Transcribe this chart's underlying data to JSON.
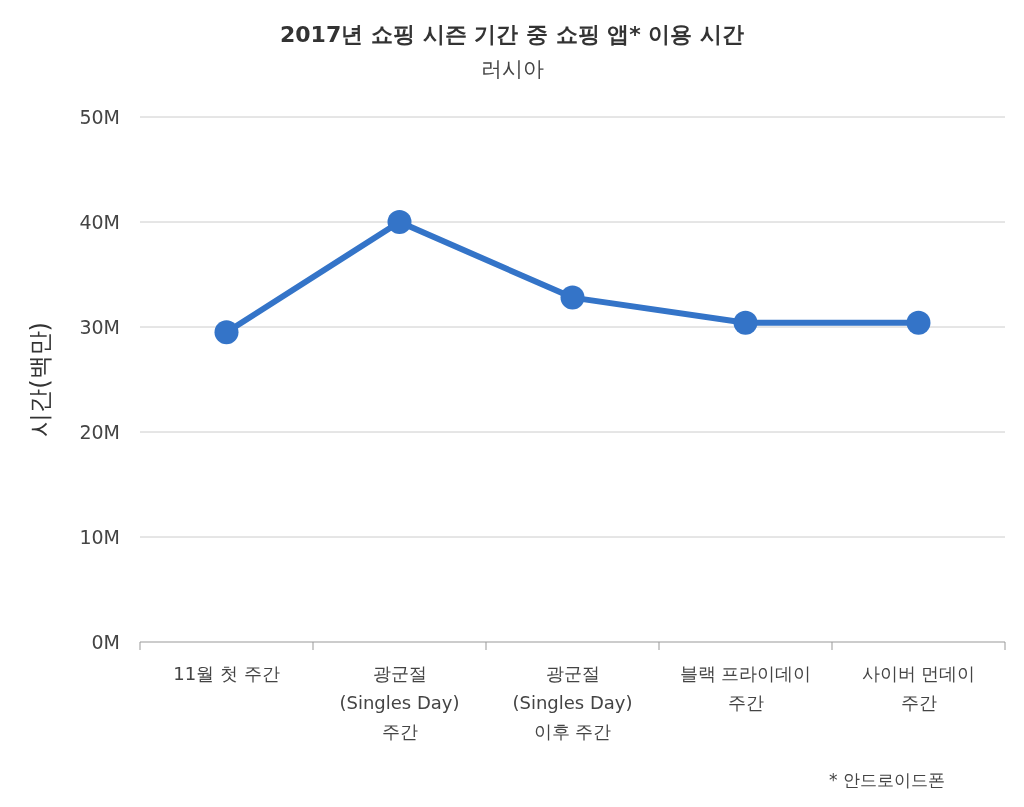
{
  "chart_data": {
    "type": "line",
    "title": "2017년 쇼핑 시즌 기간 중 쇼핑 앱* 이용 시간",
    "subtitle": "러시아",
    "ylabel": "시간(백만)",
    "categories": [
      "11월 첫 주간",
      "광군절 (Singles Day) 주간",
      "광군절 (Singles Day) 이후 주간",
      "블랙 프라이데이 주간",
      "사이버 먼데이 주간"
    ],
    "series": [
      {
        "color": "#3474c8",
        "values": [
          29.5,
          40.0,
          32.8,
          30.4,
          30.4
        ]
      }
    ],
    "ylim": [
      0,
      50
    ],
    "yticks": [
      {
        "value": 0,
        "label": "0M"
      },
      {
        "value": 10,
        "label": "10M"
      },
      {
        "value": 20,
        "label": "20M"
      },
      {
        "value": 30,
        "label": "30M"
      },
      {
        "value": 40,
        "label": "40M"
      },
      {
        "value": 50,
        "label": "50M"
      }
    ],
    "grid": "y",
    "marker": "circle",
    "line_style": "solid",
    "annotations": [
      "* 안드로이드폰"
    ]
  }
}
